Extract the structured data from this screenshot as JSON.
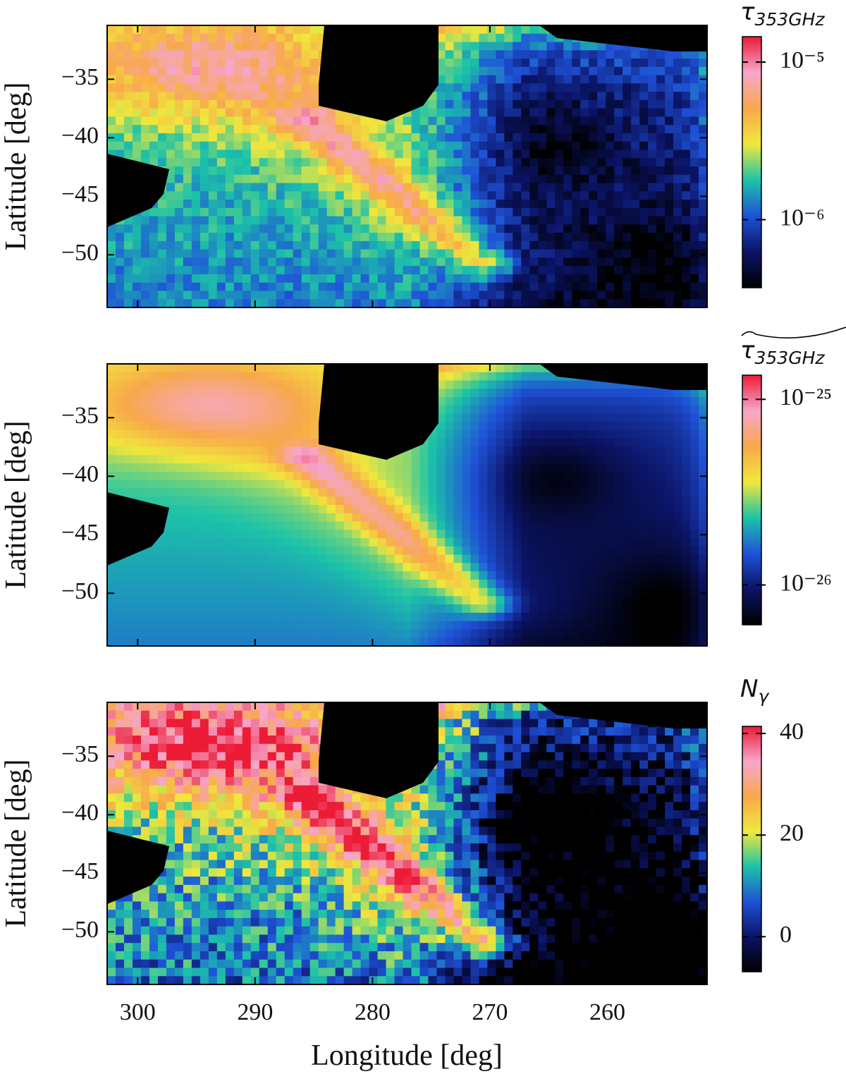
{
  "chart_data": [
    {
      "type": "heatmap",
      "ylabel": "Latitude [deg]",
      "show_xticklabels": false,
      "xlim": [
        302.6,
        251.5
      ],
      "ylim": [
        -54.5,
        -30.4
      ],
      "xticks": [
        300,
        290,
        280,
        270,
        260
      ],
      "yticks": [
        {
          "value": -35,
          "label": "−35"
        },
        {
          "value": -40,
          "label": "−40"
        },
        {
          "value": -45,
          "label": "−45"
        },
        {
          "value": -50,
          "label": "−50"
        }
      ],
      "texture": "noisy",
      "colorbar": {
        "label": "τ",
        "label_sub": "353GHz",
        "log": true,
        "lim": [
          3.7e-07,
          1.45e-05
        ],
        "ticks": [
          {
            "value": 1e-06,
            "label": "10⁻⁶"
          },
          {
            "value": 1e-05,
            "label": "10⁻⁵"
          }
        ],
        "colormap": [
          "#000000",
          "#0b1466",
          "#1f52d8",
          "#1cc3a8",
          "#f0e83c",
          "#f8a84a",
          "#f6a6cc",
          "#ec1b36"
        ]
      }
    },
    {
      "type": "heatmap",
      "ylabel": "Latitude [deg]",
      "show_xticklabels": false,
      "xlim": [
        302.6,
        251.5
      ],
      "ylim": [
        -54.5,
        -30.4
      ],
      "xticks": [
        300,
        290,
        280,
        270,
        260
      ],
      "yticks": [
        {
          "value": -35,
          "label": "−35"
        },
        {
          "value": -40,
          "label": "−40"
        },
        {
          "value": -45,
          "label": "−45"
        },
        {
          "value": -50,
          "label": "−50"
        }
      ],
      "texture": "smooth",
      "colorbar": {
        "label": "τ",
        "label_sub": "353GHz",
        "log": true,
        "lim": [
          6.1e-27,
          1.35e-25
        ],
        "ticks": [
          {
            "value": 1e-26,
            "label": "10⁻²⁶"
          },
          {
            "value": 1e-25,
            "label": "10⁻²⁵"
          }
        ],
        "colormap": [
          "#000000",
          "#0b1466",
          "#1f52d8",
          "#1cc3a8",
          "#f0e83c",
          "#f8a84a",
          "#f6a6cc",
          "#ec1b36"
        ]
      }
    },
    {
      "type": "heatmap",
      "ylabel": "Latitude [deg]",
      "xlabel": "Longitude [deg]",
      "show_xticklabels": true,
      "xlim": [
        302.6,
        251.5
      ],
      "ylim": [
        -54.5,
        -30.4
      ],
      "xticks": [
        300,
        290,
        280,
        270,
        260
      ],
      "yticks": [
        {
          "value": -35,
          "label": "−35"
        },
        {
          "value": -40,
          "label": "−40"
        },
        {
          "value": -45,
          "label": "−45"
        },
        {
          "value": -50,
          "label": "−50"
        }
      ],
      "texture": "speckled",
      "colorbar": {
        "label": "N",
        "label_sub": "γ",
        "log": false,
        "lim": [
          -6.9,
          41.4
        ],
        "ticks": [
          0,
          20,
          40
        ],
        "colormap": [
          "#000000",
          "#0b1466",
          "#1f52d8",
          "#1cc3a8",
          "#f0e83c",
          "#f8a84a",
          "#f6a6cc",
          "#ec1b36"
        ]
      }
    }
  ]
}
